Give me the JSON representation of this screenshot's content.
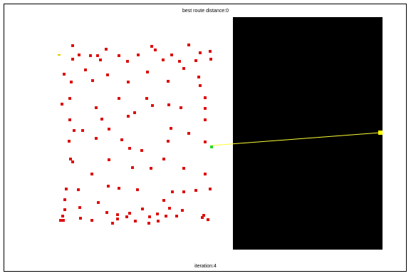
{
  "window": {
    "title": "best route distance:0",
    "iteration_label": "iteration:4"
  },
  "colors": {
    "background": "#ffffff",
    "border": "#000000",
    "city": "#dd1111",
    "current_city": "#22dd22",
    "start_city": "#ddcc00",
    "route_line": "#ffff33",
    "route_endpoint": "#ffff00",
    "panel": "#000000"
  },
  "icons": {
    "city": "red-square-marker",
    "current_city": "green-square-marker",
    "start_city": "yellow-dash-marker",
    "route_endpoint": "yellow-square-marker"
  }
}
